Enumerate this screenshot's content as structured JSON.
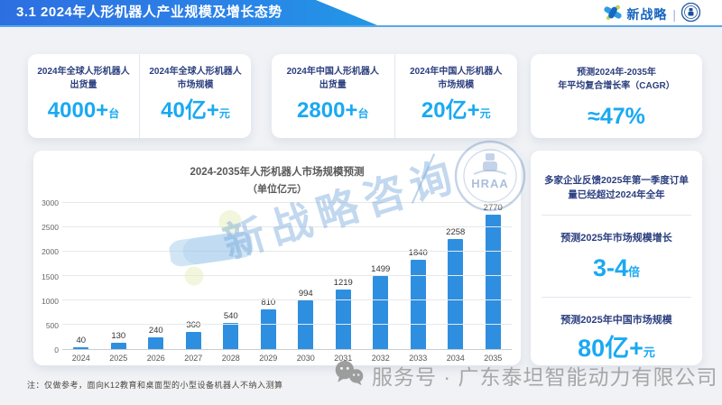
{
  "header": {
    "title": "3.1 2024年人形机器人产业规模及增长态势",
    "brand": {
      "name": "新战略",
      "separator": "|"
    }
  },
  "colors": {
    "accent_blue": "#1aa9f2",
    "bar_blue": "#2e8fe0",
    "dark_blue_text": "#2b3e7e",
    "banner_gradient_left": "#2c6fe2",
    "banner_gradient_right": "#2198e6",
    "background": "#f0f2f5"
  },
  "stats": [
    {
      "label_line1": "2024年全球人形机器人",
      "label_line2": "出货量",
      "value": "4000+",
      "unit": "台"
    },
    {
      "label_line1": "2024年全球人形机器人",
      "label_line2": "市场规模",
      "value": "40亿+",
      "unit": "元"
    },
    {
      "label_line1": "2024年中国人形机器人",
      "label_line2": "出货量",
      "value": "2800+",
      "unit": "台"
    },
    {
      "label_line1": "2024年中国人形机器人",
      "label_line2": "市场规模",
      "value": "20亿+",
      "unit": "元"
    }
  ],
  "cagr": {
    "label_line1": "预测2024年-2035年",
    "label_line2": "年平均复合增长率（CAGR）",
    "value": "≈47%"
  },
  "chart_data": {
    "type": "bar",
    "title": "2024-2035年人形机器人市场规模预测",
    "subtitle": "（单位亿元）",
    "categories": [
      "2024",
      "2025",
      "2026",
      "2027",
      "2028",
      "2029",
      "2030",
      "2031",
      "2032",
      "2033",
      "2034",
      "2035"
    ],
    "values": [
      40,
      130,
      240,
      360,
      540,
      810,
      994,
      1219,
      1499,
      1840,
      2258,
      2770
    ],
    "ylim": [
      0,
      3000
    ],
    "yticks": [
      0,
      500,
      1000,
      1500,
      2000,
      2500,
      3000
    ],
    "bar_color": "#2e8fe0",
    "grid": true,
    "legend": "none",
    "xlabel": "",
    "ylabel": ""
  },
  "insight_panel": {
    "note": "多家企业反馈2025年第一季度订单量已经超过2024年全年",
    "growth_label": "预测2025年市场规模增长",
    "growth_value": "3-4",
    "growth_unit": "倍",
    "china_label": "预测2025年中国市场规模",
    "china_value": "80亿+",
    "china_unit": "元"
  },
  "watermarks": {
    "chart_watermark": "新战略咨询",
    "badge_text": "HRAA",
    "bottom_watermark": "服务号 · 广东泰坦智能动力有限公司"
  },
  "footnote": "注：仅做参考，面向K12教育和桌面型的小型设备机器人不纳入测算"
}
